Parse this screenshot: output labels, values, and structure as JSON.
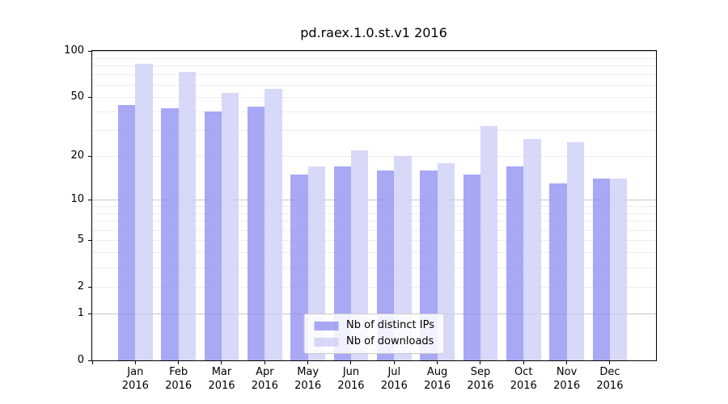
{
  "title": "pd.raex.1.0.st.v1 2016",
  "chart_data": {
    "type": "bar",
    "title": "pd.raex.1.0.st.v1 2016",
    "categories": [
      "Jan",
      "Feb",
      "Mar",
      "Apr",
      "May",
      "Jun",
      "Jul",
      "Aug",
      "Sep",
      "Oct",
      "Nov",
      "Dec"
    ],
    "year": "2016",
    "series": [
      {
        "name": "Nb of distinct IPs",
        "color": "rgba(146,146,242,0.8)",
        "values": [
          44,
          42,
          40,
          43,
          15,
          17,
          16,
          16,
          15,
          17,
          13,
          14
        ]
      },
      {
        "name": "Nb of downloads",
        "color": "rgba(206,206,247,0.8)",
        "values": [
          82,
          73,
          53,
          56,
          17,
          22,
          20,
          18,
          32,
          26,
          25,
          14
        ]
      }
    ],
    "yscale": "log1p",
    "ylim": [
      0,
      100
    ],
    "yticks": [
      100,
      50,
      20,
      10,
      5,
      2,
      1,
      0
    ],
    "grid_minor_values": [
      2,
      3,
      4,
      5,
      6,
      7,
      8,
      9,
      20,
      30,
      40,
      50,
      60,
      70,
      80,
      90
    ],
    "grid_major_values": [
      1,
      10,
      100
    ],
    "grid_minor_color": "#ededed",
    "grid_major_color": "#c6c6c6",
    "legend_position": "lower center",
    "xlabel": "",
    "ylabel": ""
  }
}
